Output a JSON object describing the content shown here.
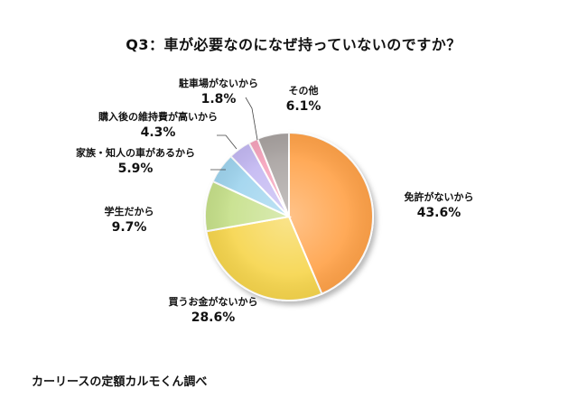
{
  "chart_data": {
    "type": "pie",
    "title": "Q3：車が必要なのになぜ持っていないのですか？",
    "start_angle": "12 o'clock",
    "direction": "clockwise",
    "slices": [
      {
        "label": "免許がないから",
        "pct_text": "43.6%",
        "value": 43.6,
        "color": "#FFA24A"
      },
      {
        "label": "買うお金がないから",
        "pct_text": "28.6%",
        "value": 28.6,
        "color": "#F6D54E"
      },
      {
        "label": "学生だから",
        "pct_text": "9.7%",
        "value": 9.7,
        "color": "#C6E08A"
      },
      {
        "label": "家族・知人の車があるから",
        "pct_text": "5.9%",
        "value": 5.9,
        "color": "#9FD4EE"
      },
      {
        "label": "購入後の維持費が高いから",
        "pct_text": "4.3%",
        "value": 4.3,
        "color": "#C3B8F2"
      },
      {
        "label": "駐車場がないから",
        "pct_text": "1.8%",
        "value": 1.8,
        "color": "#F5A3BC"
      },
      {
        "label": "その他",
        "pct_text": "6.1%",
        "value": 6.1,
        "color": "#A8A2A0"
      }
    ]
  },
  "source": "カーリースの定額カルモくん調べ"
}
